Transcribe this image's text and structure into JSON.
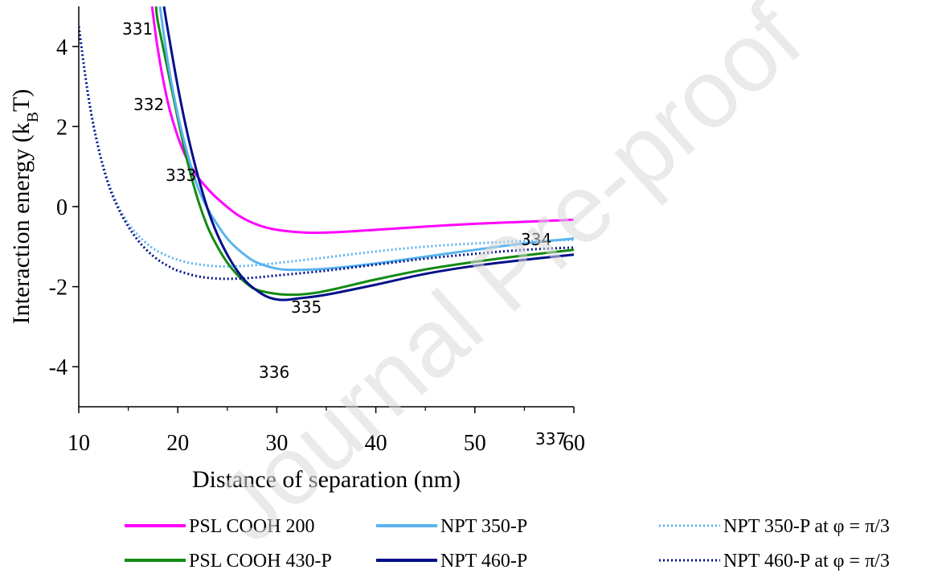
{
  "chart_data": {
    "type": "line",
    "xlabel": "Distance of separation (nm)",
    "ylabel_main": "Interaction energy (k",
    "ylabel_sub": "B",
    "ylabel_end": "T)",
    "xlim": [
      10,
      60
    ],
    "ylim": [
      -5,
      5
    ],
    "x_ticks": [
      10,
      20,
      30,
      40,
      50,
      60
    ],
    "y_ticks": [
      4,
      2,
      0,
      -2,
      -4
    ],
    "grid": false,
    "legend_position": "bottom",
    "series": [
      {
        "name": "PSL COOH 200",
        "color": "#ff00ff",
        "dash": "solid",
        "x": [
          17.4,
          18,
          19,
          20,
          21,
          22,
          23,
          24,
          26,
          28,
          30,
          33,
          36,
          40,
          45,
          50,
          55,
          60
        ],
        "y": [
          5.0,
          3.9,
          2.6,
          1.75,
          1.15,
          0.75,
          0.45,
          0.2,
          -0.2,
          -0.45,
          -0.58,
          -0.65,
          -0.64,
          -0.58,
          -0.5,
          -0.43,
          -0.38,
          -0.33
        ]
      },
      {
        "name": "PSL COOH 430-P",
        "color": "#138a13",
        "dash": "solid",
        "x": [
          17.8,
          18,
          19,
          20,
          21,
          22,
          23,
          24,
          25,
          26,
          27,
          28,
          30,
          32,
          34,
          36,
          40,
          45,
          50,
          55,
          60
        ],
        "y": [
          5.0,
          4.6,
          3.4,
          2.2,
          1.1,
          0.2,
          -0.5,
          -1.0,
          -1.4,
          -1.7,
          -1.93,
          -2.08,
          -2.18,
          -2.2,
          -2.15,
          -2.05,
          -1.82,
          -1.57,
          -1.38,
          -1.22,
          -1.08
        ]
      },
      {
        "name": "NPT 350-P",
        "color": "#5ab4ee",
        "dash": "solid",
        "x": [
          18.2,
          19,
          20,
          21,
          22,
          23,
          24,
          25,
          26,
          27,
          28,
          30,
          32,
          35,
          40,
          45,
          50,
          55,
          60
        ],
        "y": [
          5.0,
          3.6,
          2.3,
          1.3,
          0.5,
          -0.05,
          -0.45,
          -0.8,
          -1.05,
          -1.25,
          -1.4,
          -1.55,
          -1.58,
          -1.55,
          -1.42,
          -1.25,
          -1.08,
          -0.92,
          -0.8
        ]
      },
      {
        "name": "NPT 460-P",
        "color": "#000f8a",
        "dash": "solid",
        "x": [
          18.6,
          19,
          20,
          21,
          22,
          23,
          24,
          25,
          26,
          27,
          28,
          29,
          30,
          31,
          32,
          35,
          40,
          45,
          50,
          55,
          60
        ],
        "y": [
          5.0,
          4.4,
          3.0,
          1.8,
          0.8,
          -0.05,
          -0.7,
          -1.2,
          -1.6,
          -1.9,
          -2.1,
          -2.25,
          -2.32,
          -2.33,
          -2.3,
          -2.2,
          -1.95,
          -1.68,
          -1.48,
          -1.33,
          -1.2
        ]
      },
      {
        "name": "NPT 350-P at φ = π/3",
        "color": "#5ab4ee",
        "dash": "dotted",
        "x": [
          10,
          11,
          12,
          13,
          14,
          15,
          16,
          17,
          18,
          20,
          22,
          24,
          26,
          28,
          30,
          35,
          40,
          45,
          50,
          55,
          60
        ],
        "y": [
          4.5,
          2.7,
          1.45,
          0.6,
          0.0,
          -0.42,
          -0.72,
          -0.95,
          -1.12,
          -1.33,
          -1.44,
          -1.49,
          -1.49,
          -1.46,
          -1.41,
          -1.27,
          -1.12,
          -1.0,
          -0.92,
          -0.86,
          -0.83
        ]
      },
      {
        "name": "NPT 460-P at φ = π/3",
        "color": "#000f8a",
        "dash": "dotted",
        "x": [
          10,
          11,
          12,
          13,
          14,
          15,
          16,
          17,
          18,
          19,
          20,
          22,
          24,
          26,
          28,
          30,
          35,
          40,
          45,
          50,
          55,
          60
        ],
        "y": [
          4.5,
          2.7,
          1.45,
          0.55,
          -0.05,
          -0.5,
          -0.85,
          -1.12,
          -1.33,
          -1.48,
          -1.6,
          -1.74,
          -1.8,
          -1.8,
          -1.77,
          -1.72,
          -1.6,
          -1.45,
          -1.3,
          -1.18,
          -1.08,
          -1.02
        ]
      }
    ]
  },
  "line_numbers": [
    "331",
    "332",
    "333",
    "334",
    "335",
    "336",
    "337"
  ],
  "watermark": "Journal Pre-proof"
}
